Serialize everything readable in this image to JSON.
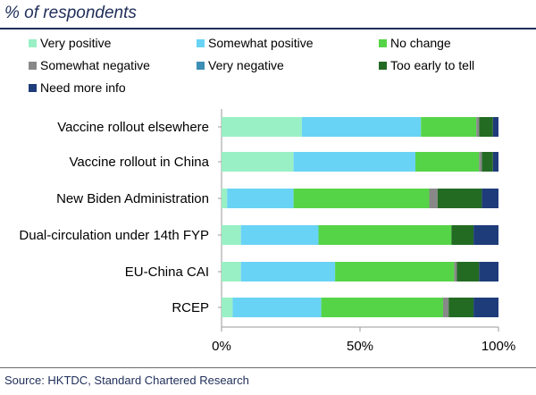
{
  "chart_data": {
    "type": "bar",
    "orientation": "horizontal",
    "stacked": true,
    "title": "% of respondents",
    "source": "Source: HKTDC, Standard Chartered Research",
    "categories": [
      "Vaccine rollout elsewhere",
      "Vaccine rollout in China",
      "New Biden Administration",
      "Dual-circulation under 14th FYP",
      "EU-China CAI",
      "RCEP"
    ],
    "series": [
      {
        "name": "Very positive",
        "color": "#99f0c4",
        "values": [
          29,
          26,
          2,
          7,
          7,
          4
        ]
      },
      {
        "name": "Somewhat positive",
        "color": "#69d3f5",
        "values": [
          43,
          44,
          24,
          28,
          34,
          32
        ]
      },
      {
        "name": "No change",
        "color": "#56d448",
        "values": [
          20,
          23,
          49,
          48,
          43,
          44
        ]
      },
      {
        "name": "Somewhat negative",
        "color": "#888888",
        "values": [
          1,
          1,
          3,
          0,
          1,
          2
        ]
      },
      {
        "name": "Very negative",
        "color": "#3d8eb4",
        "values": [
          0,
          0,
          0,
          0,
          0,
          0
        ]
      },
      {
        "name": "Too early to tell",
        "color": "#236b23",
        "values": [
          5,
          4,
          16,
          8,
          8,
          9
        ]
      },
      {
        "name": "Need more info",
        "color": "#1f3c7a",
        "values": [
          2,
          2,
          6,
          9,
          7,
          9
        ]
      }
    ],
    "xlim": [
      0,
      100
    ],
    "xticks": [
      "0%",
      "50%",
      "100%"
    ],
    "legend_position": "top"
  }
}
